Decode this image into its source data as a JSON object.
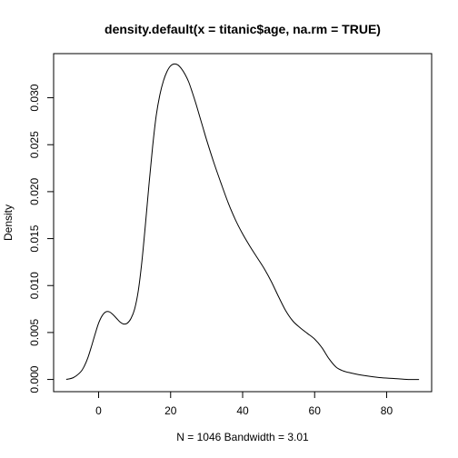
{
  "chart_data": {
    "type": "line",
    "title": "density.default(x = titanic$age, na.rm = TRUE)",
    "xlabel": "N = 1046   Bandwidth = 3.01",
    "ylabel": "Density",
    "xlim": [
      -12.5,
      92.5
    ],
    "ylim": [
      -0.0013,
      0.0347
    ],
    "x_ticks": [
      0,
      20,
      40,
      60,
      80
    ],
    "x_tick_labels": [
      "0",
      "20",
      "40",
      "60",
      "80"
    ],
    "y_ticks": [
      0.0,
      0.005,
      0.01,
      0.015,
      0.02,
      0.025,
      0.03
    ],
    "y_tick_labels": [
      "0.000",
      "0.005",
      "0.010",
      "0.015",
      "0.020",
      "0.025",
      "0.030"
    ],
    "grid": false,
    "legend": "none",
    "series": [
      {
        "x": [
          -9,
          -7,
          -5,
          -4,
          -3,
          -2,
          -1,
          0,
          1,
          2,
          3,
          4,
          5,
          6,
          7,
          8,
          9,
          10,
          11,
          12,
          13,
          14,
          15,
          16,
          17,
          18,
          19,
          20,
          21,
          22,
          23,
          24,
          25,
          26,
          27,
          28,
          29,
          30,
          32,
          34,
          36,
          38,
          40,
          42,
          44,
          46,
          48,
          50,
          52,
          54,
          56,
          58,
          60,
          62,
          64,
          66,
          68,
          70,
          74,
          78,
          82,
          86,
          89
        ],
        "y": [
          0.0,
          0.0002,
          0.0008,
          0.0014,
          0.0023,
          0.0035,
          0.0048,
          0.006,
          0.0068,
          0.0072,
          0.0072,
          0.0069,
          0.0065,
          0.0061,
          0.0059,
          0.006,
          0.0065,
          0.0075,
          0.0094,
          0.0125,
          0.0165,
          0.0208,
          0.0248,
          0.0281,
          0.0303,
          0.0318,
          0.0328,
          0.0334,
          0.0336,
          0.0335,
          0.0331,
          0.0325,
          0.0317,
          0.0306,
          0.0294,
          0.0281,
          0.0268,
          0.0255,
          0.0231,
          0.0209,
          0.0188,
          0.017,
          0.0155,
          0.0142,
          0.013,
          0.0118,
          0.0104,
          0.0088,
          0.0073,
          0.0062,
          0.0055,
          0.0049,
          0.0043,
          0.0034,
          0.0022,
          0.0013,
          0.0009,
          0.0007,
          0.0004,
          0.0002,
          0.0001,
          0.0,
          0.0
        ]
      }
    ]
  }
}
